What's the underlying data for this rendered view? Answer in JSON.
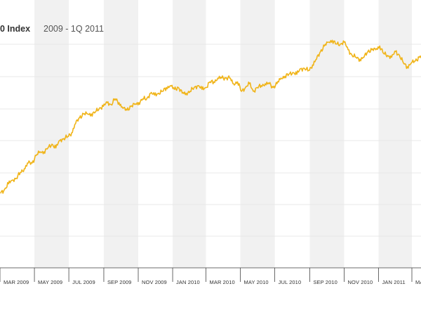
{
  "chart_data": {
    "type": "line",
    "title": "0 Index",
    "subtitle": "2009 - 1Q 2011",
    "xlabel": "",
    "ylabel": "",
    "grid": true,
    "line_color": "#f0b419",
    "band_color": "#f1f1f1",
    "tick_labels": [
      "MAR 2009",
      "MAY 2009",
      "JUL 2009",
      "SEP 2009",
      "NOV 2009",
      "JAN 2010",
      "MAR 2010",
      "MAY 2010",
      "JUL 2010",
      "SEP 2010",
      "NOV 2010",
      "JAN 2011",
      "MA"
    ],
    "ylim": [
      0,
      100
    ],
    "series": [
      {
        "x": [
          "2009-03-02",
          "2009-03-09",
          "2009-03-16",
          "2009-03-23",
          "2009-03-30",
          "2009-04-06",
          "2009-04-13",
          "2009-04-20",
          "2009-04-27",
          "2009-05-04",
          "2009-05-11",
          "2009-05-18",
          "2009-05-25",
          "2009-06-01",
          "2009-06-08",
          "2009-06-15",
          "2009-06-22",
          "2009-06-29",
          "2009-07-06",
          "2009-07-13",
          "2009-07-20",
          "2009-07-27",
          "2009-08-03",
          "2009-08-10",
          "2009-08-17",
          "2009-08-24",
          "2009-08-31",
          "2009-09-07",
          "2009-09-14",
          "2009-09-21",
          "2009-09-28",
          "2009-10-05",
          "2009-10-12",
          "2009-10-19",
          "2009-10-26",
          "2009-11-02",
          "2009-11-09",
          "2009-11-16",
          "2009-11-23",
          "2009-11-30",
          "2009-12-07",
          "2009-12-14",
          "2009-12-21",
          "2009-12-28",
          "2010-01-04",
          "2010-01-11",
          "2010-01-18",
          "2010-01-25",
          "2010-02-01",
          "2010-02-08",
          "2010-02-15",
          "2010-02-22",
          "2010-03-01",
          "2010-03-08",
          "2010-03-15",
          "2010-03-22",
          "2010-03-29",
          "2010-04-05",
          "2010-04-12",
          "2010-04-19",
          "2010-04-26",
          "2010-05-03",
          "2010-05-10",
          "2010-05-17",
          "2010-05-24",
          "2010-05-31",
          "2010-06-07",
          "2010-06-14",
          "2010-06-21",
          "2010-06-28",
          "2010-07-05",
          "2010-07-12",
          "2010-07-19",
          "2010-07-26",
          "2010-08-02",
          "2010-08-09",
          "2010-08-16",
          "2010-08-23",
          "2010-08-30",
          "2010-09-06",
          "2010-09-13",
          "2010-09-20",
          "2010-09-27",
          "2010-10-04",
          "2010-10-11",
          "2010-10-18",
          "2010-10-25",
          "2010-11-01",
          "2010-11-08",
          "2010-11-15",
          "2010-11-22",
          "2010-11-29",
          "2010-12-06",
          "2010-12-13",
          "2010-12-20",
          "2010-12-27",
          "2011-01-03",
          "2011-01-10",
          "2011-01-17",
          "2011-01-24",
          "2011-01-31",
          "2011-02-07",
          "2011-02-14",
          "2011-02-21",
          "2011-02-28",
          "2011-03-07",
          "2011-03-14",
          "2011-03-21"
        ],
        "values": [
          16,
          18,
          21,
          23,
          24,
          27,
          29,
          32,
          32,
          36,
          38,
          38,
          40,
          42,
          40,
          44,
          45,
          46,
          48,
          53,
          56,
          58,
          58,
          58,
          59,
          61,
          62,
          64,
          63,
          66,
          64,
          61,
          60,
          62,
          63,
          64,
          66,
          66,
          69,
          68,
          69,
          70,
          72,
          73,
          71,
          72,
          69,
          69,
          70,
          72,
          73,
          71,
          72,
          75,
          75,
          77,
          77,
          77,
          77,
          74,
          75,
          70,
          72,
          74,
          70,
          72,
          73,
          74,
          74,
          72,
          74,
          77,
          78,
          79,
          80,
          79,
          82,
          82,
          81,
          84,
          87,
          91,
          94,
          96,
          97,
          95,
          95,
          96,
          92,
          89,
          88,
          87,
          88,
          91,
          92,
          92,
          94,
          90,
          89,
          88,
          91,
          89,
          85,
          83,
          85,
          86,
          88,
          89
        ]
      }
    ]
  }
}
